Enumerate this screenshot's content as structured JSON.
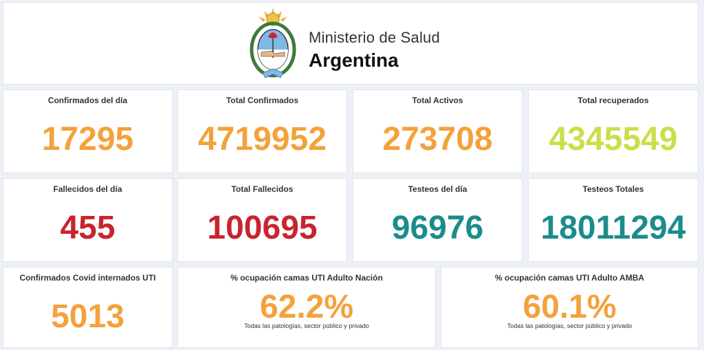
{
  "header": {
    "ministry": "Ministerio de Salud",
    "country": "Argentina",
    "emblem_icon": "argentina-coat-of-arms-icon"
  },
  "colors": {
    "orange": "#f3a23b",
    "lime": "#cbde4a",
    "red": "#c8242f",
    "teal": "#1b8c8c"
  },
  "row1": [
    {
      "label": "Confirmados del día",
      "value": "17295"
    },
    {
      "label": "Total Confirmados",
      "value": "4719952"
    },
    {
      "label": "Total Activos",
      "value": "273708"
    },
    {
      "label": "Total recuperados",
      "value": "4345549"
    }
  ],
  "row2": [
    {
      "label": "Fallecidos del día",
      "value": "455"
    },
    {
      "label": "Total Fallecidos",
      "value": "100695"
    },
    {
      "label": "Testeos del día",
      "value": "96976"
    },
    {
      "label": "Testeos Totales",
      "value": "18011294"
    }
  ],
  "row3": [
    {
      "label": "Confirmados Covid internados UTI",
      "value": "5013"
    },
    {
      "label": "% ocupación camas UTI Adulto Nación",
      "value": "62.2%",
      "note": "Todas las patologías, sector público y privado"
    },
    {
      "label": "% ocupación camas UTI Adulto AMBA",
      "value": "60.1%",
      "note": "Todas las patologías, sector público y privado"
    }
  ]
}
